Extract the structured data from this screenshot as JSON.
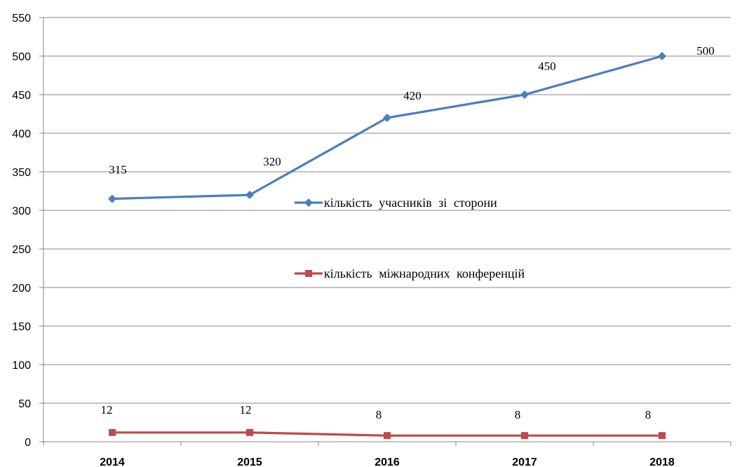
{
  "chart_data": {
    "type": "line",
    "categories": [
      "2014",
      "2015",
      "2016",
      "2017",
      "2018"
    ],
    "ylim": [
      0,
      550
    ],
    "yticks": [
      0,
      50,
      100,
      150,
      200,
      250,
      300,
      350,
      400,
      450,
      500,
      550
    ],
    "grid": true,
    "legend_position": "center-right",
    "series": [
      {
        "name": "кількість  учасників  зі сторони",
        "values": [
          315,
          320,
          420,
          450,
          500
        ],
        "labels": [
          "315",
          "320",
          "420",
          "450",
          "500"
        ],
        "color": "#4a7ebf",
        "marker": "diamond"
      },
      {
        "name": "кількість  міжнародних  конференцій",
        "values": [
          12,
          12,
          8,
          8,
          8
        ],
        "labels": [
          "12",
          "12",
          "8",
          "8",
          "8"
        ],
        "color": "#be4b48",
        "marker": "square"
      }
    ]
  }
}
